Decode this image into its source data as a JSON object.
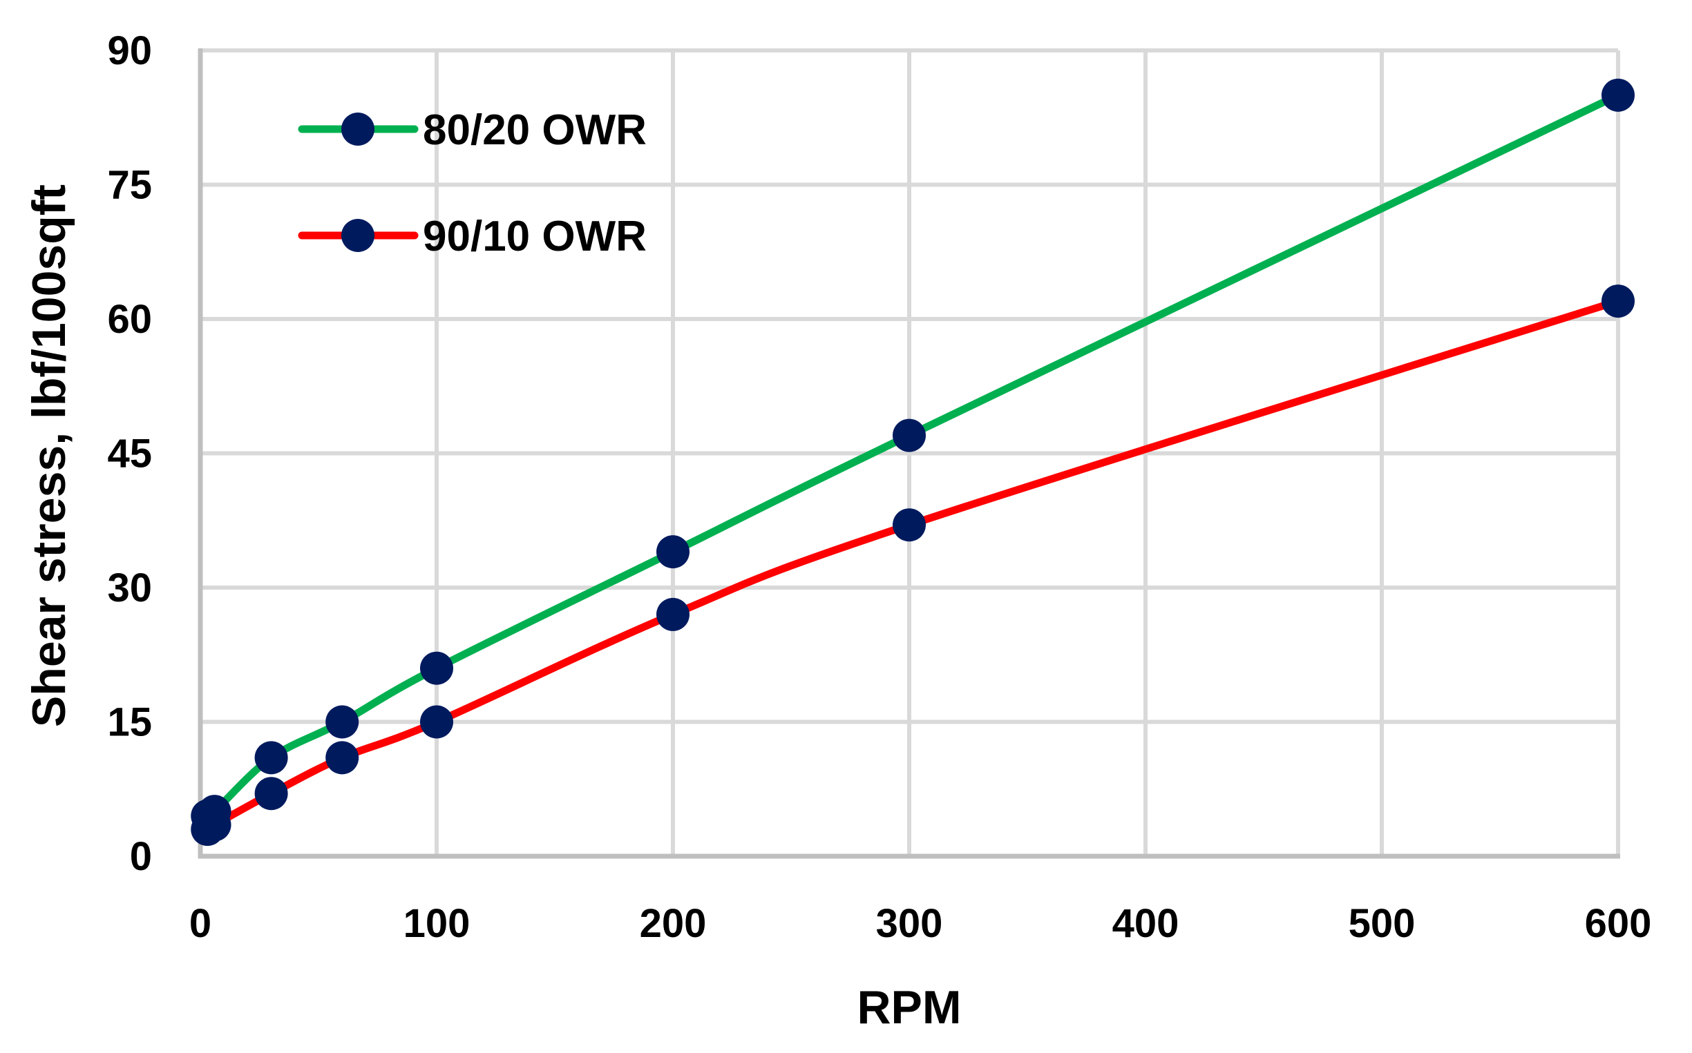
{
  "chart_data": {
    "type": "line",
    "title": "",
    "xlabel": "RPM",
    "ylabel": "Shear stress, lbf/100sqft",
    "xlim": [
      0,
      600
    ],
    "ylim": [
      0,
      90
    ],
    "x_ticks": [
      0,
      100,
      200,
      300,
      400,
      500,
      600
    ],
    "y_ticks": [
      0,
      15,
      30,
      45,
      60,
      75,
      90
    ],
    "grid": true,
    "legend_position": "upper-left-inside",
    "x": [
      3,
      6,
      30,
      60,
      100,
      200,
      300,
      600
    ],
    "series": [
      {
        "name": "80/20 OWR",
        "line_color": "#00B050",
        "marker_color": "#001A5E",
        "values": [
          4.5,
          5,
          11,
          15,
          21,
          34,
          47,
          85
        ]
      },
      {
        "name": "90/10 OWR",
        "line_color": "#FF0000",
        "marker_color": "#001A5E",
        "values": [
          3,
          3.5,
          7,
          11,
          15,
          27,
          37,
          62
        ]
      }
    ]
  },
  "colors": {
    "grid": "#D9D9D9",
    "axis": "#BFBFBF",
    "text": "#000000"
  }
}
